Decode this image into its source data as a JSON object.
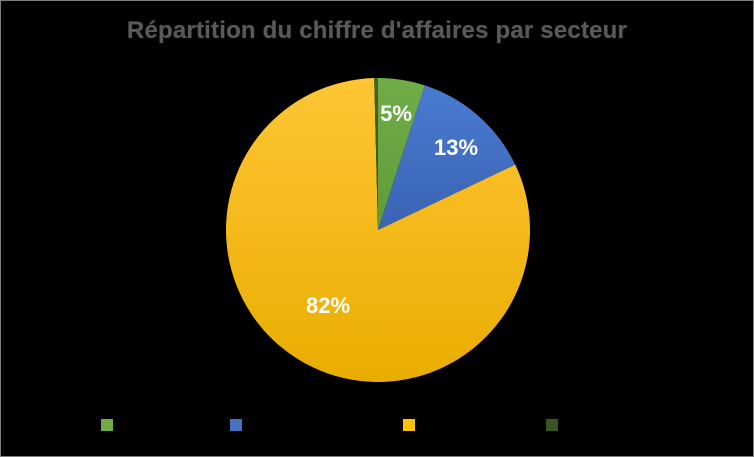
{
  "chart_data": {
    "type": "pie",
    "title": "Répartition du chiffre d'affaires par secteur",
    "slices": [
      {
        "label": "5%",
        "value": 5,
        "color": "#70ad47"
      },
      {
        "label": "13%",
        "value": 13,
        "color": "#4472c4"
      },
      {
        "label": "82%",
        "value": 82,
        "color": "#ffc000"
      },
      {
        "label": "",
        "value": 0.4,
        "color": "#375623"
      }
    ],
    "legend": {
      "position": "bottom"
    }
  }
}
